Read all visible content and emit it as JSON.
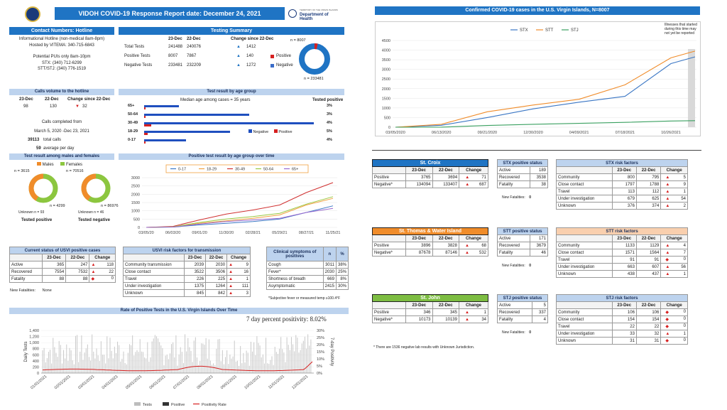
{
  "header": {
    "title": "VIDOH COVID-19 Response Report date: December 24, 2021",
    "doh_small": "TERRITORY OF THE VIRGIN ISLANDS",
    "doh_label": "Department of Health"
  },
  "hotline": {
    "title": "Contact Numbers: Hotline",
    "lines": [
      "Informational Hotline (non-medical 8am-8pm)",
      "Hosted by VITEMA: 340-715-6843",
      "",
      "Potential PUIs only 8am-10pm",
      "STX: (340) 712-6299",
      "STT/STJ: (340) 776-1519"
    ]
  },
  "testing": {
    "title": "Testing Summary",
    "col1": "23-Dec",
    "col2": "22-Dec",
    "col3": "Change since 22-Dec",
    "rows": [
      {
        "label": "Total Tests",
        "v1": "241488",
        "v2": "240076",
        "chg": "1412"
      },
      {
        "label": "Positive Tests",
        "v1": "8007",
        "v2": "7867",
        "chg": "140"
      },
      {
        "label": "Negative Tests",
        "v1": "233481",
        "v2": "232209",
        "chg": "1272"
      }
    ],
    "legend_positive": "Positive",
    "legend_negative": "Negative",
    "donut_top": "n = 8007",
    "donut_bottom": "n = 233481",
    "positive": 8007,
    "negative": 233481
  },
  "calls": {
    "title": "Calls volume to the hotline",
    "h1": "23-Dec",
    "h2": "22-Dec",
    "h3": "Change since 22-Dec",
    "v1": "98",
    "v2": "130",
    "v3": "32",
    "completed_label": "Calls completed from",
    "range": "March 5, 2020 -Dec 23, 2021",
    "total": "39113",
    "total_label": "total calls",
    "avg": "59",
    "avg_label": "average per day"
  },
  "age": {
    "title": "Test result by age group",
    "median": "Median age among cases = 35 years",
    "tested_positive": "Tested positive",
    "groups": [
      {
        "label": "65+",
        "neg": 0.2,
        "pos": 0.01,
        "pct": "3%"
      },
      {
        "label": "50-64",
        "neg": 0.6,
        "pos": 0.01,
        "pct": "3%"
      },
      {
        "label": "30-49",
        "neg": 0.97,
        "pos": 0.04,
        "pct": "4%"
      },
      {
        "label": "18-29",
        "neg": 0.49,
        "pos": 0.02,
        "pct": "5%"
      },
      {
        "label": "0-17",
        "neg": 0.24,
        "pos": 0.01,
        "pct": "4%"
      }
    ],
    "legend_negative": "Negative",
    "legend_positive": "Positive"
  },
  "sex": {
    "title": "Test result among males and females",
    "males": "Males",
    "females": "Females",
    "n_pos_m": "n = 3615",
    "n_pos_f": "n = 4299",
    "n_neg_m": "n = 70516",
    "n_neg_f": "n = 86976",
    "unk_pos": "Unknown n = 93",
    "unk_neg": "Unknown n = 46",
    "tested_positive": "Tested positive",
    "tested_negative": "Tested negative",
    "male_color": "#f08c2a",
    "female_color": "#8cc63f"
  },
  "age_time": {
    "title": "Positive test result by age group over time",
    "legend": [
      "0-17",
      "18-29",
      "30-49",
      "50-64",
      "65+"
    ],
    "colors": [
      "#3a76c4",
      "#f0a040",
      "#d03030",
      "#9ac840",
      "#9a6ad0"
    ],
    "yticks": [
      "3000",
      "2500",
      "2000",
      "1500",
      "1000",
      "500",
      "0"
    ],
    "xticks": [
      "03/05/20",
      "06/03/20",
      "09/01/20",
      "11/30/20",
      "02/28/21",
      "05/29/21",
      "08/27/21",
      "11/25/21"
    ]
  },
  "usvi_status": {
    "title": "Current status of USVI positive cases",
    "h1": "23-Dec",
    "h2": "22-Dec",
    "h3": "Change",
    "rows": [
      {
        "label": "Active",
        "v1": "365",
        "v2": "247",
        "chg": "118",
        "dir": "up"
      },
      {
        "label": "Recovered",
        "v1": "7554",
        "v2": "7532",
        "chg": "22",
        "dir": "up"
      },
      {
        "label": "Fatality",
        "v1": "88",
        "v2": "88",
        "chg": "0",
        "dir": "same"
      }
    ],
    "new_fatalities_label": "New Fatalities:",
    "new_fatalities": "None"
  },
  "usvi_risk": {
    "title": "USVI risk factors for transmission",
    "h1": "23-Dec",
    "h2": "22-Dec",
    "h3": "Change",
    "rows": [
      {
        "label": "Community transmission",
        "v1": "2039",
        "v2": "2030",
        "chg": "9",
        "dir": "up"
      },
      {
        "label": "Close contact",
        "v1": "3522",
        "v2": "3506",
        "chg": "16",
        "dir": "up"
      },
      {
        "label": "Travel",
        "v1": "226",
        "v2": "225",
        "chg": "1",
        "dir": "up"
      },
      {
        "label": "Under investigation",
        "v1": "1375",
        "v2": "1264",
        "chg": "111",
        "dir": "up"
      },
      {
        "label": "Unknown",
        "v1": "845",
        "v2": "842",
        "chg": "3",
        "dir": "up"
      }
    ]
  },
  "symptoms": {
    "title": "Clinical symptoms of positives",
    "h1": "n",
    "h2": "%",
    "rows": [
      {
        "label": "Cough",
        "n": "3011",
        "pct": "38%"
      },
      {
        "label": "Fever*",
        "n": "2030",
        "pct": "25%"
      },
      {
        "label": "Shortness of breath",
        "n": "669",
        "pct": "8%"
      },
      {
        "label": "Asymptomatic",
        "n": "2415",
        "pct": "30%"
      }
    ],
    "note": "*Subjective fever or measured temp ≥100.4°F"
  },
  "rate": {
    "title": "Rate of Positive Tests in the U.S. Virgin Islands Over Time",
    "subtitle": "7 day percent positivity: 8.02%",
    "ylabel_left": "Daily Tests",
    "ylabel_right": "7-day Positivity",
    "yticks_left": [
      "1,400",
      "1,200",
      "1,000",
      "800",
      "600",
      "400",
      "200",
      "0"
    ],
    "yticks_right": [
      "30%",
      "25%",
      "20%",
      "15%",
      "10%",
      "5%",
      "0%"
    ],
    "xticks": [
      "01/01/2021",
      "02/01/2021",
      "03/01/2021",
      "04/01/2021",
      "05/01/2021",
      "06/01/2021",
      "07/01/2021",
      "08/01/2021",
      "09/01/2021",
      "10/01/2021",
      "11/01/2021",
      "12/01/2021"
    ],
    "legend": [
      "Tests",
      "Positive",
      "Positivity Rate"
    ]
  },
  "confirmed": {
    "title": "Confirmed COVID-19 cases in the U.S. Virgin Islands, N=8007",
    "legend": [
      "STX",
      "STT",
      "STJ"
    ],
    "colors": [
      "#3a76c4",
      "#f08c2a",
      "#3aa060"
    ],
    "note": "Illnesses that started during this time may not yet be reported",
    "yticks": [
      "4500",
      "4000",
      "3500",
      "3000",
      "2500",
      "2000",
      "1500",
      "1000",
      "500",
      "0"
    ],
    "xticks": [
      "03/05/2020",
      "06/13/2020",
      "09/21/2020",
      "12/30/2020",
      "04/09/2021",
      "07/18/2021",
      "10/26/2021"
    ]
  },
  "districts": [
    {
      "name": "St. Croix",
      "color": "#1f74c4",
      "h1": "23-Dec",
      "h2": "22-Dec",
      "h3": "Change",
      "pos": {
        "label": "Positive",
        "v1": "3765",
        "v2": "3694",
        "chg": "71"
      },
      "neg": {
        "label": "Negative*",
        "v1": "134094",
        "v2": "133407",
        "chg": "687"
      },
      "status_title": "STX positive status",
      "status": [
        {
          "label": "Active",
          "v": "189"
        },
        {
          "label": "Recovered",
          "v": "3538"
        },
        {
          "label": "Fatality",
          "v": "38"
        }
      ],
      "new_fat_label": "New Fatalities:",
      "new_fat": "0",
      "risk_title": "STX risk factors",
      "risk": [
        {
          "label": "Community",
          "v1": "800",
          "v2": "795",
          "chg": "5",
          "dir": "up"
        },
        {
          "label": "Close contact",
          "v1": "1797",
          "v2": "1788",
          "chg": "9",
          "dir": "up"
        },
        {
          "label": "Travel",
          "v1": "113",
          "v2": "112",
          "chg": "1",
          "dir": "up"
        },
        {
          "label": "Under investigation",
          "v1": "679",
          "v2": "625",
          "chg": "54",
          "dir": "up"
        },
        {
          "label": "Unknown",
          "v1": "376",
          "v2": "374",
          "chg": "2",
          "dir": "up"
        }
      ]
    },
    {
      "name": "St. Thomas & Water Island",
      "color": "#f08c2a",
      "h1": "23-Dec",
      "h2": "22-Dec",
      "h3": "Change",
      "pos": {
        "label": "Positive",
        "v1": "3896",
        "v2": "3828",
        "chg": "68"
      },
      "neg": {
        "label": "Negative*",
        "v1": "87678",
        "v2": "87146",
        "chg": "532"
      },
      "status_title": "STT positive status",
      "status": [
        {
          "label": "Active",
          "v": "171"
        },
        {
          "label": "Recovered",
          "v": "3679"
        },
        {
          "label": "Fatality",
          "v": "46"
        }
      ],
      "new_fat_label": "New Fatalities:",
      "new_fat": "0",
      "risk_title": "STT risk factors",
      "risk": [
        {
          "label": "Community",
          "v1": "1133",
          "v2": "1129",
          "chg": "4",
          "dir": "up"
        },
        {
          "label": "Close contact",
          "v1": "1571",
          "v2": "1564",
          "chg": "7",
          "dir": "up"
        },
        {
          "label": "Travel",
          "v1": "91",
          "v2": "91",
          "chg": "0",
          "dir": "same"
        },
        {
          "label": "Under investigation",
          "v1": "663",
          "v2": "607",
          "chg": "56",
          "dir": "up"
        },
        {
          "label": "Unknown",
          "v1": "438",
          "v2": "437",
          "chg": "1",
          "dir": "up"
        }
      ]
    },
    {
      "name": "St. John",
      "color": "#7dbd42",
      "h1": "23-Dec",
      "h2": "22-Dec",
      "h3": "Change",
      "pos": {
        "label": "Positive",
        "v1": "346",
        "v2": "345",
        "chg": "1"
      },
      "neg": {
        "label": "Negative*",
        "v1": "10173",
        "v2": "10139",
        "chg": "34"
      },
      "status_title": "STJ positive status",
      "status": [
        {
          "label": "Active",
          "v": "5"
        },
        {
          "label": "Recovered",
          "v": "337"
        },
        {
          "label": "Fatality",
          "v": "4"
        }
      ],
      "new_fat_label": "New Fatalities:",
      "new_fat": "0",
      "risk_title": "STJ risk factors",
      "risk": [
        {
          "label": "Community",
          "v1": "106",
          "v2": "106",
          "chg": "0",
          "dir": "same"
        },
        {
          "label": "Close contact",
          "v1": "154",
          "v2": "154",
          "chg": "0",
          "dir": "same"
        },
        {
          "label": "Travel",
          "v1": "22",
          "v2": "22",
          "chg": "0",
          "dir": "same"
        },
        {
          "label": "Under investigation",
          "v1": "33",
          "v2": "32",
          "chg": "1",
          "dir": "up"
        },
        {
          "label": "Unknown",
          "v1": "31",
          "v2": "31",
          "chg": "0",
          "dir": "same"
        }
      ]
    }
  ],
  "footnote": "* There are 1536 negative lab results with Unknown Jurisdiction.",
  "chart_data": [
    {
      "type": "pie",
      "categories": [
        "Positive",
        "Negative"
      ],
      "values": [
        8007,
        233481
      ]
    },
    {
      "type": "bar",
      "categories": [
        "65+",
        "50-64",
        "30-49",
        "18-29",
        "0-17"
      ],
      "values": [
        3,
        3,
        4,
        5,
        4
      ]
    },
    {
      "type": "line",
      "x": [
        "03/05/20",
        "06/03/20",
        "09/01/20",
        "11/30/20",
        "02/28/21",
        "05/29/21",
        "08/27/21",
        "11/25/21"
      ],
      "series": [
        {
          "name": "0-17",
          "values": [
            0,
            20,
            150,
            250,
            350,
            500,
            900,
            1300
          ]
        },
        {
          "name": "18-29",
          "values": [
            0,
            30,
            250,
            400,
            550,
            750,
            1350,
            1750
          ]
        },
        {
          "name": "30-49",
          "values": [
            0,
            60,
            450,
            800,
            1050,
            1350,
            2100,
            2700
          ]
        },
        {
          "name": "50-64",
          "values": [
            0,
            30,
            300,
            500,
            650,
            850,
            1400,
            1850
          ]
        },
        {
          "name": "65+",
          "values": [
            0,
            20,
            200,
            350,
            450,
            550,
            900,
            1150
          ]
        }
      ],
      "ylim": [
        0,
        3000
      ]
    },
    {
      "type": "line",
      "x": [
        "03/05/2020",
        "06/13/2020",
        "09/21/2020",
        "12/30/2020",
        "04/09/2021",
        "07/18/2021",
        "10/26/2021"
      ],
      "series": [
        {
          "name": "STX",
          "values": [
            0,
            100,
            500,
            950,
            1300,
            1600,
            3300
          ]
        },
        {
          "name": "STT",
          "values": [
            0,
            150,
            800,
            1150,
            1450,
            2200,
            3600
          ]
        },
        {
          "name": "STJ",
          "values": [
            0,
            5,
            90,
            150,
            200,
            250,
            320
          ]
        }
      ],
      "ylim": [
        0,
        4500
      ]
    }
  ]
}
